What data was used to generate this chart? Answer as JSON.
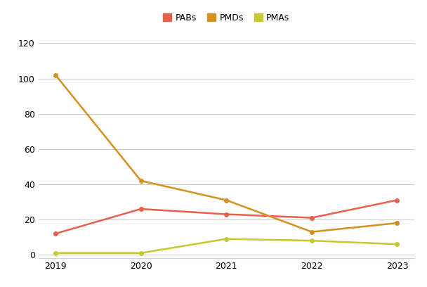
{
  "years": [
    2019,
    2020,
    2021,
    2022,
    2023
  ],
  "PABs": [
    12,
    26,
    23,
    21,
    31
  ],
  "PMDs": [
    102,
    42,
    31,
    13,
    18
  ],
  "PMAs": [
    1,
    1,
    9,
    8,
    6
  ],
  "PABs_color": "#E8604C",
  "PMDs_color": "#D4911E",
  "PMAs_color": "#C8C832",
  "background_color": "#FFFFFF",
  "grid_color": "#D0D0D0",
  "ylim": [
    -2,
    125
  ],
  "yticks": [
    0,
    20,
    40,
    60,
    80,
    100,
    120
  ],
  "legend_labels": [
    "PABs",
    "PMDs",
    "PMAs"
  ],
  "figsize": [
    6.08,
    4.08
  ],
  "dpi": 100
}
